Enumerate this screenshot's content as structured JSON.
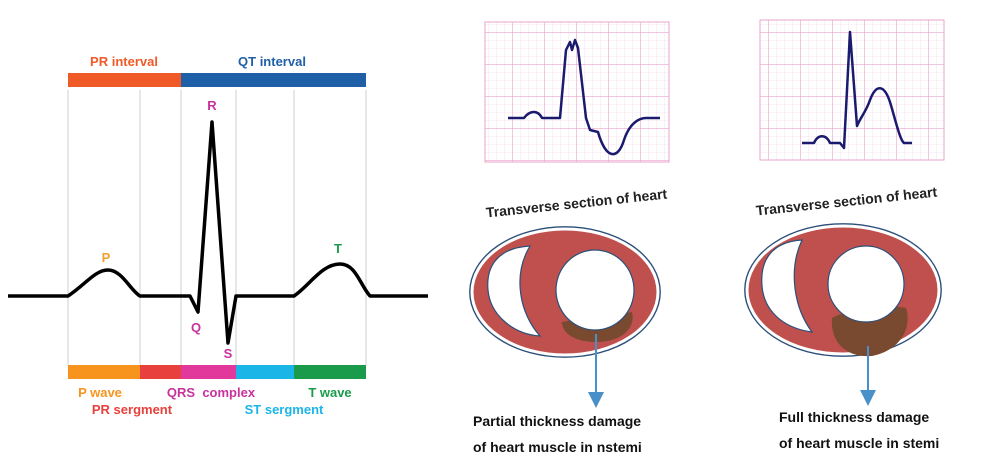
{
  "ecg_diagram": {
    "intervals": {
      "pr_interval": "PR interval",
      "qt_interval": "QT interval"
    },
    "waves": {
      "p": "P",
      "q": "Q",
      "r": "R",
      "s": "S",
      "t": "T"
    },
    "segments": {
      "p_wave": "P wave",
      "qrs_complex": "QRS  complex",
      "t_wave": "T wave",
      "pr_segment": "PR sergment",
      "st_segment": "ST sergment"
    },
    "colors": {
      "pr_bar": "#f05a28",
      "qt_bar": "#1f5fa8",
      "p_seg": "#f7941d",
      "pr_seg": "#e8403c",
      "qrs_seg": "#e2389c",
      "st_seg": "#1cb5e8",
      "t_seg": "#1a9b4b",
      "wave_label_orange": "#f0a030",
      "wave_label_magenta": "#c8329c",
      "wave_label_green": "#1a9b4b"
    }
  },
  "nstemi_panel": {
    "caption_title": "Transverse section of heart",
    "caption_line1": "Partial thickness damage",
    "caption_line2": "of heart muscle in nstemi"
  },
  "stemi_panel": {
    "caption_title": "Transverse section of heart",
    "caption_line1": "Full thickness damage",
    "caption_line2": "of heart muscle in stemi"
  },
  "heart_colors": {
    "muscle": "#c0504d",
    "outline": "#2b4f7a",
    "damage": "#7a4a30",
    "grid_line": "#e9a3c9",
    "trace": "#1a1a6e",
    "arrow": "#4a90c8"
  }
}
